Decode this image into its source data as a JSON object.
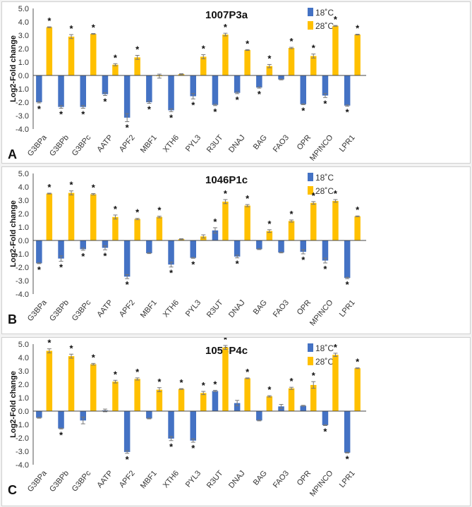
{
  "chart_data": [
    {
      "type": "bar",
      "panel_label": "A",
      "title": "1007P3a",
      "ylabel": "Log2-Fold change",
      "ylim": [
        -4,
        5
      ],
      "yticks": [
        "5.0",
        "4.0",
        "3.0",
        "2.0",
        "1.0",
        "0.0",
        "-1.0",
        "-2.0",
        "-3.0",
        "-4.0"
      ],
      "categories": [
        "G3BPa",
        "G3BPb",
        "G3BPc",
        "AATP",
        "APF2",
        "MBF1",
        "XTH6",
        "PYL3",
        "R3UT",
        "DNAJ",
        "BAG",
        "FAO3",
        "OPR",
        "MPINCO",
        "LPR1"
      ],
      "legend_position": "top-right",
      "series": [
        {
          "name": "18˚C",
          "color": "#4472C4",
          "values": [
            -2.0,
            -2.35,
            -2.35,
            -1.4,
            -3.15,
            -2.0,
            -2.6,
            -1.55,
            -2.2,
            -1.3,
            -0.9,
            -0.3,
            -2.15,
            -1.5,
            -2.25
          ],
          "errors": [
            0.05,
            0.1,
            0.1,
            0.1,
            0.3,
            0.08,
            0.1,
            0.2,
            0.05,
            0.06,
            0.05,
            0.03,
            0.03,
            0.15,
            0.05
          ],
          "significant": [
            true,
            true,
            true,
            true,
            true,
            true,
            true,
            true,
            true,
            true,
            true,
            false,
            true,
            true,
            true
          ]
        },
        {
          "name": "28˚C",
          "color": "#FFC000",
          "values": [
            3.6,
            2.9,
            3.1,
            0.8,
            1.35,
            -0.05,
            0.1,
            1.4,
            3.05,
            1.9,
            0.7,
            2.05,
            1.45,
            3.7,
            3.05
          ],
          "errors": [
            0.03,
            0.15,
            0.03,
            0.08,
            0.15,
            0.15,
            0.03,
            0.15,
            0.1,
            0.03,
            0.12,
            0.05,
            0.15,
            0.03,
            0.03
          ],
          "significant": [
            true,
            true,
            true,
            true,
            true,
            false,
            false,
            true,
            true,
            true,
            true,
            true,
            true,
            true,
            true
          ]
        }
      ]
    },
    {
      "type": "bar",
      "panel_label": "B",
      "title": "1046P1c",
      "ylabel": "Log2-Fold change",
      "ylim": [
        -4,
        5
      ],
      "yticks": [
        "5.0",
        "4.0",
        "3.0",
        "2.0",
        "1.0",
        "0.0",
        "-1.0",
        "-2.0",
        "-3.0",
        "-4.0"
      ],
      "categories": [
        "G3BPa",
        "G3BPb",
        "G3BPc",
        "AATP",
        "APF2",
        "MBF1",
        "XTH6",
        "PYL3",
        "R3UT",
        "DNAJ",
        "BAG",
        "FAO3",
        "OPR",
        "MPINCO",
        "LPR1"
      ],
      "legend_position": "top-right",
      "series": [
        {
          "name": "18˚C",
          "color": "#4472C4",
          "values": [
            -1.7,
            -1.35,
            -0.65,
            -0.55,
            -2.7,
            -0.95,
            -1.8,
            -1.3,
            0.75,
            -1.2,
            -0.65,
            -0.9,
            -0.85,
            -1.5,
            -2.8
          ],
          "errors": [
            0.03,
            0.2,
            0.08,
            0.15,
            0.15,
            0.03,
            0.18,
            0.03,
            0.2,
            0.1,
            0.03,
            0.03,
            0.15,
            0.18,
            0.05
          ],
          "significant": [
            true,
            true,
            true,
            true,
            true,
            false,
            true,
            true,
            true,
            true,
            false,
            false,
            true,
            true,
            true
          ]
        },
        {
          "name": "28˚C",
          "color": "#FFC000",
          "values": [
            3.5,
            3.55,
            3.45,
            1.75,
            1.6,
            1.75,
            0.1,
            0.3,
            2.9,
            2.6,
            0.7,
            1.45,
            2.8,
            2.95,
            1.8
          ],
          "errors": [
            0.03,
            0.15,
            0.05,
            0.15,
            0.05,
            0.06,
            0.03,
            0.12,
            0.15,
            0.08,
            0.1,
            0.08,
            0.1,
            0.1,
            0.03
          ],
          "significant": [
            true,
            true,
            true,
            true,
            true,
            true,
            false,
            false,
            true,
            true,
            true,
            true,
            true,
            true,
            true
          ]
        }
      ]
    },
    {
      "type": "bar",
      "panel_label": "C",
      "title": "1058P4c",
      "ylabel": "Log2-Fold change",
      "ylim": [
        -4,
        5
      ],
      "yticks": [
        "5.0",
        "4.0",
        "3.0",
        "2.0",
        "1.0",
        "0.0",
        "-1.0",
        "-2.0",
        "-3.0",
        "-4.0"
      ],
      "categories": [
        "G3BPa",
        "G3BPb",
        "G3BPc",
        "AATP",
        "APF2",
        "MBF1",
        "XTH6",
        "PYL3",
        "R3UT",
        "DNAJ",
        "BAG",
        "FAO3",
        "OPR",
        "MPINCO",
        "LPR1"
      ],
      "legend_position": "top-right",
      "series": [
        {
          "name": "18˚C",
          "color": "#4472C4",
          "values": [
            -0.5,
            -1.3,
            -0.7,
            0.05,
            -3.05,
            -0.55,
            -2.05,
            -2.2,
            1.5,
            0.6,
            -0.7,
            0.35,
            0.4,
            -1.05,
            -3.1
          ],
          "errors": [
            0.03,
            0.03,
            0.25,
            0.1,
            0.1,
            0.03,
            0.15,
            0.12,
            0.05,
            0.2,
            0.03,
            0.15,
            0.03,
            0.03,
            0.03
          ],
          "significant": [
            false,
            true,
            false,
            false,
            true,
            false,
            true,
            true,
            true,
            false,
            false,
            false,
            false,
            true,
            true
          ]
        },
        {
          "name": "28˚C",
          "color": "#FFC000",
          "values": [
            4.5,
            4.1,
            3.5,
            2.2,
            2.4,
            1.6,
            1.65,
            1.35,
            4.75,
            2.45,
            1.1,
            1.7,
            1.95,
            4.2,
            3.2
          ],
          "errors": [
            0.15,
            0.15,
            0.06,
            0.1,
            0.08,
            0.15,
            0.03,
            0.12,
            0.15,
            0.03,
            0.05,
            0.08,
            0.25,
            0.12,
            0.03
          ],
          "significant": [
            true,
            true,
            true,
            true,
            true,
            true,
            true,
            true,
            true,
            true,
            true,
            true,
            true,
            true,
            true
          ]
        }
      ]
    }
  ]
}
